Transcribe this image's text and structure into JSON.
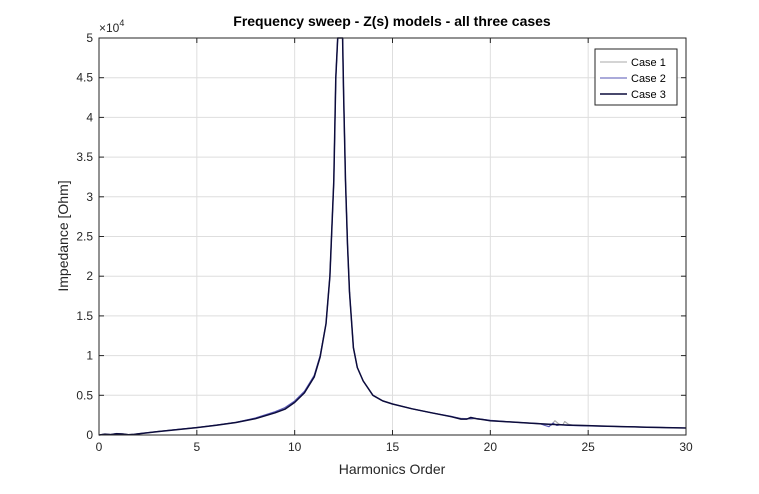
{
  "chart_data": {
    "type": "line",
    "title": "Frequency sweep - Z(s) models - all three cases",
    "xlabel": "Harmonics Order",
    "ylabel": "Impedance [Ohm]",
    "y_exponent_label": "×10",
    "y_exponent_power": "4",
    "xlim": [
      0,
      30
    ],
    "ylim": [
      0,
      50000
    ],
    "x_ticks": [
      0,
      5,
      10,
      15,
      20,
      25,
      30
    ],
    "x_tick_labels": [
      "0",
      "5",
      "10",
      "15",
      "20",
      "25",
      "30"
    ],
    "y_ticks": [
      0,
      5000,
      10000,
      15000,
      20000,
      25000,
      30000,
      35000,
      40000,
      45000,
      50000
    ],
    "y_tick_labels": [
      "0",
      "0.5",
      "1",
      "1.5",
      "2",
      "2.5",
      "3",
      "3.5",
      "4",
      "4.5",
      "5"
    ],
    "grid": true,
    "legend_position": "top-right",
    "series": [
      {
        "name": "Case 1",
        "color": "#a8a8a8",
        "x": [
          0,
          0.3,
          0.6,
          0.9,
          1.2,
          1.5,
          1.8,
          2.1,
          2.5,
          3,
          4,
          5,
          6,
          7,
          8,
          9,
          9.5,
          10,
          10.5,
          11,
          11.3,
          11.6,
          11.8,
          12.0,
          12.1,
          12.2,
          12.25,
          12.3,
          12.35,
          12.4,
          12.45,
          12.5,
          12.6,
          12.7,
          12.8,
          13.0,
          13.2,
          13.5,
          14,
          14.5,
          15,
          16,
          17,
          18,
          18.5,
          19,
          19.2,
          19.5,
          20,
          21,
          22,
          22.5,
          23,
          23.1,
          23.3,
          23.5,
          23.7,
          23.8,
          24,
          24.2,
          25,
          26,
          27,
          28,
          29,
          30
        ],
        "values": [
          0,
          150,
          80,
          200,
          150,
          50,
          100,
          200,
          300,
          450,
          700,
          950,
          1250,
          1600,
          2100,
          2900,
          3300,
          4200,
          5400,
          7500,
          10000,
          14000,
          20000,
          32000,
          45000,
          50000,
          50000,
          50000,
          50000,
          50000,
          50000,
          43000,
          32000,
          24000,
          18000,
          11000,
          8500,
          6800,
          5000,
          4300,
          3900,
          3300,
          2800,
          2300,
          2100,
          2000,
          2050,
          1950,
          1800,
          1650,
          1500,
          1400,
          1300,
          1200,
          1800,
          1400,
          1250,
          1700,
          1350,
          1250,
          1180,
          1100,
          1050,
          980,
          930,
          880
        ]
      },
      {
        "name": "Case 2",
        "color": "#5555b4",
        "x": [
          0,
          0.3,
          0.6,
          0.9,
          1.2,
          1.5,
          1.8,
          2.1,
          2.5,
          3,
          4,
          5,
          6,
          7,
          8,
          9,
          9.5,
          10,
          10.5,
          11,
          11.3,
          11.6,
          11.8,
          12.0,
          12.1,
          12.2,
          12.25,
          12.3,
          12.35,
          12.4,
          12.45,
          12.5,
          12.6,
          12.7,
          12.8,
          13.0,
          13.2,
          13.5,
          14,
          14.5,
          15,
          16,
          17,
          18,
          18.5,
          19,
          19.2,
          19.5,
          20,
          21,
          22,
          22.5,
          22.8,
          23,
          23.2,
          23.4,
          23.6,
          24,
          25,
          26,
          27,
          28,
          29,
          30
        ],
        "values": [
          0,
          120,
          60,
          180,
          130,
          40,
          90,
          190,
          290,
          440,
          700,
          950,
          1250,
          1600,
          2150,
          2950,
          3450,
          4300,
          5500,
          7500,
          10000,
          14000,
          20000,
          32000,
          45000,
          50000,
          50000,
          50000,
          50000,
          50000,
          50000,
          43000,
          32000,
          24000,
          18000,
          11000,
          8500,
          6800,
          5000,
          4300,
          3900,
          3300,
          2800,
          2350,
          2050,
          2050,
          2100,
          2000,
          1850,
          1650,
          1500,
          1450,
          1200,
          1050,
          1500,
          1200,
          1300,
          1200,
          1150,
          1100,
          1050,
          980,
          930,
          880
        ]
      },
      {
        "name": "Case 3",
        "color": "#0c0c3c",
        "x": [
          0,
          0.3,
          0.6,
          0.9,
          1.2,
          1.5,
          1.8,
          2.1,
          2.5,
          3,
          4,
          5,
          6,
          7,
          8,
          9,
          9.5,
          10,
          10.5,
          11,
          11.3,
          11.6,
          11.8,
          12.0,
          12.1,
          12.2,
          12.25,
          12.3,
          12.35,
          12.4,
          12.45,
          12.5,
          12.6,
          12.7,
          12.8,
          13.0,
          13.2,
          13.5,
          14,
          14.5,
          15,
          16,
          17,
          18,
          18.5,
          18.8,
          19.0,
          19.3,
          19.6,
          20,
          21,
          22,
          23,
          24,
          25,
          26,
          27,
          28,
          29,
          30
        ],
        "values": [
          0,
          100,
          50,
          150,
          120,
          40,
          80,
          180,
          280,
          430,
          680,
          930,
          1230,
          1580,
          2050,
          2800,
          3250,
          4100,
          5300,
          7300,
          9800,
          14000,
          20000,
          32000,
          45000,
          50000,
          50000,
          50000,
          50000,
          50000,
          50000,
          43000,
          32000,
          24000,
          18000,
          11000,
          8500,
          6800,
          5000,
          4300,
          3900,
          3300,
          2800,
          2300,
          2000,
          2000,
          2200,
          2050,
          1950,
          1800,
          1650,
          1500,
          1350,
          1250,
          1180,
          1100,
          1050,
          980,
          930,
          880
        ]
      }
    ]
  }
}
